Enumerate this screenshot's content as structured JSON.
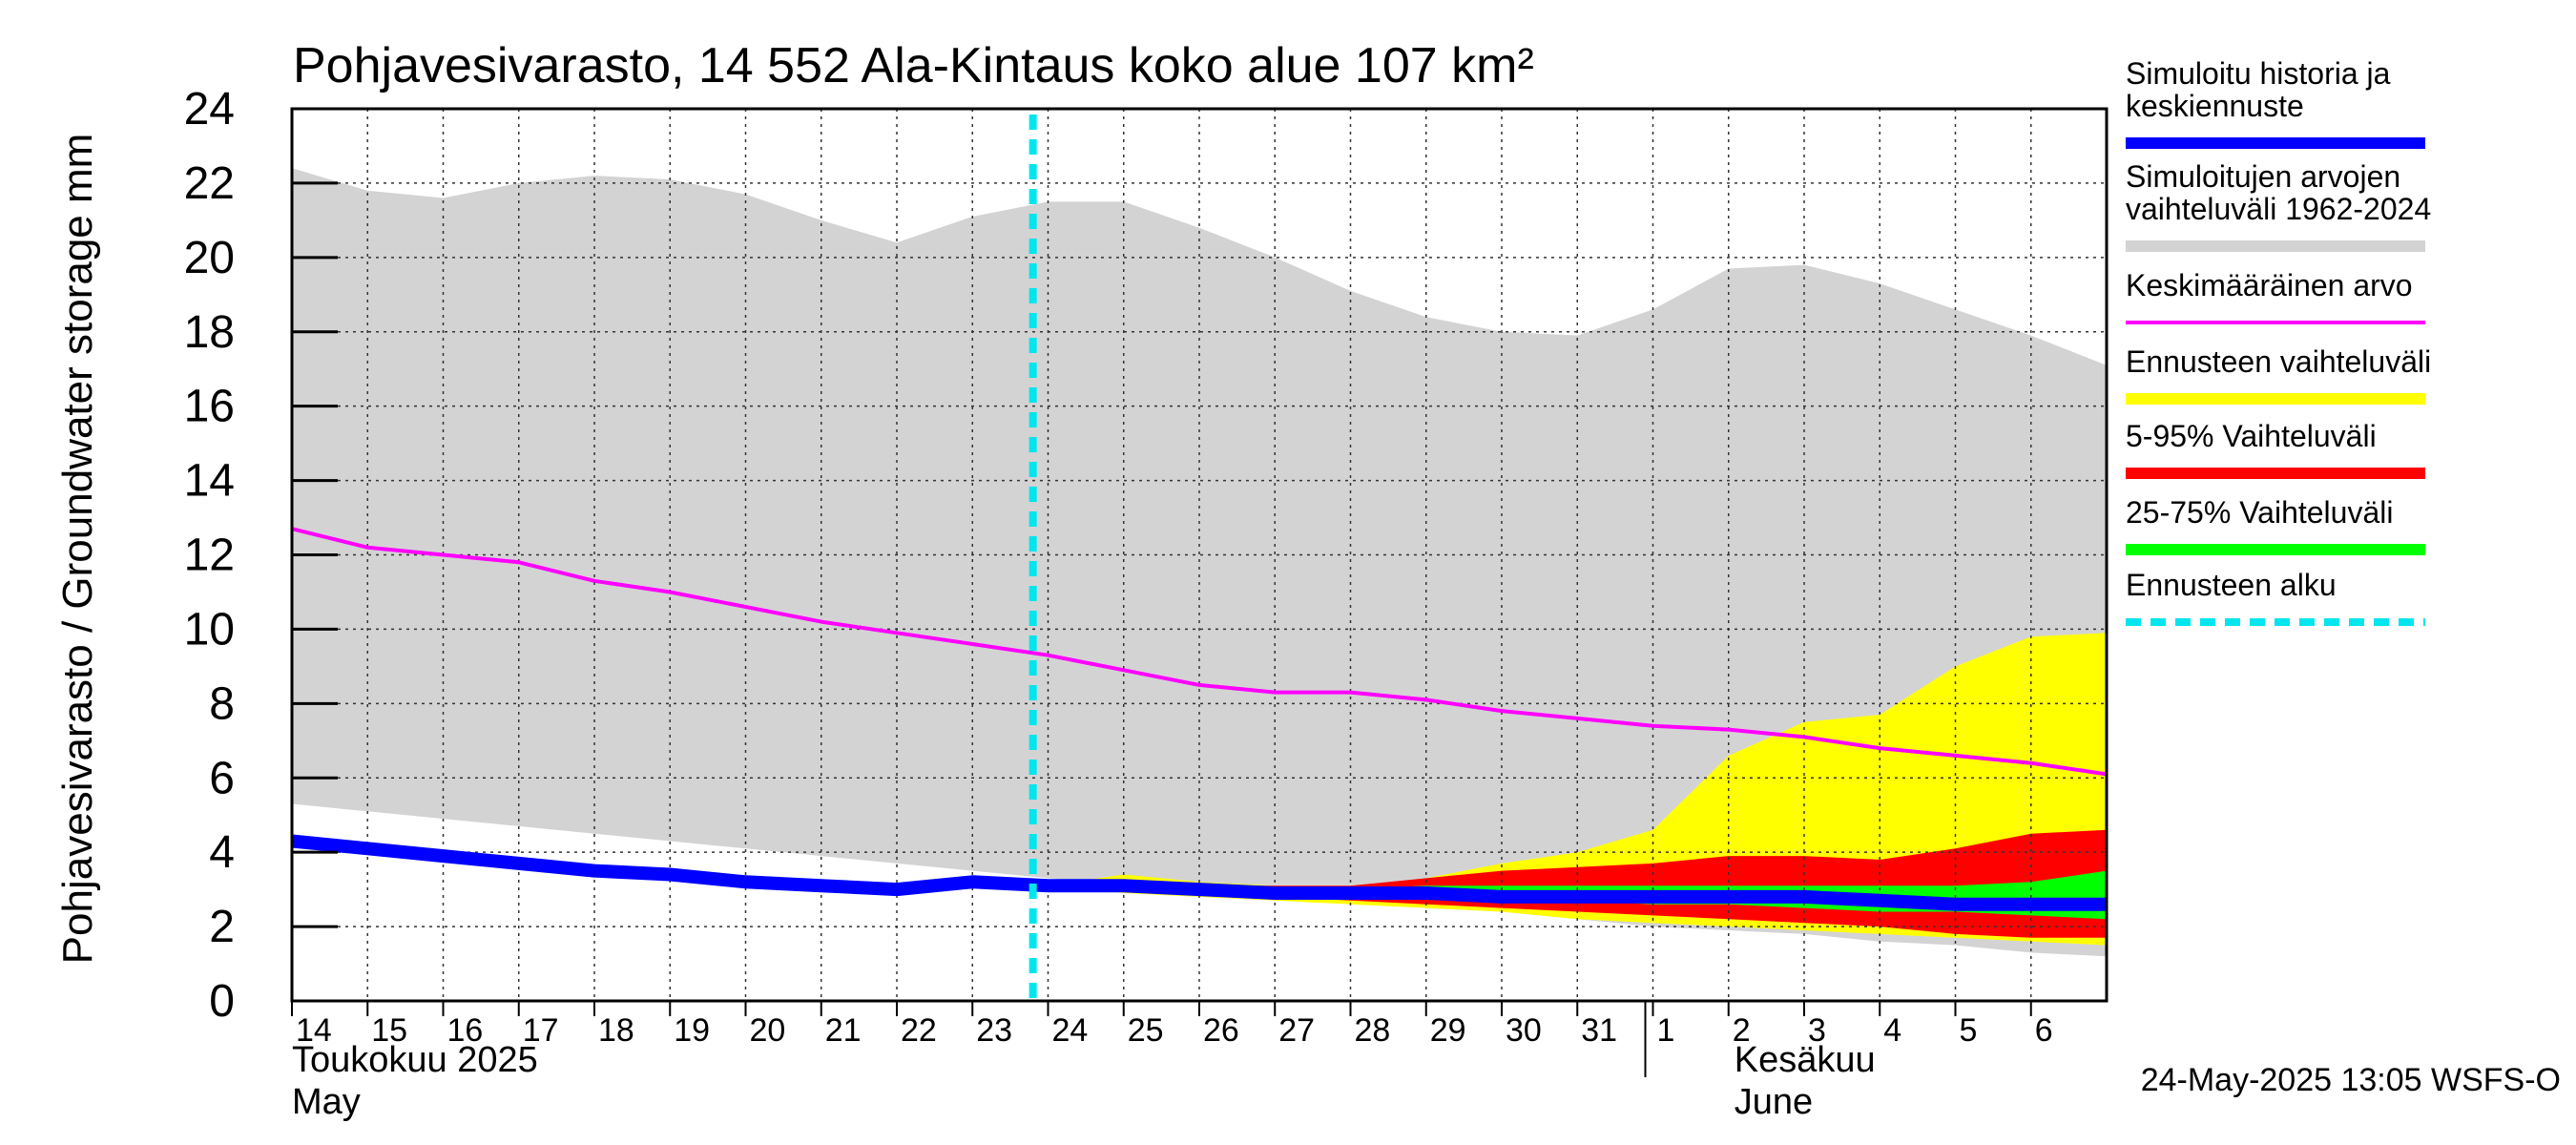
{
  "chart_data": {
    "type": "area",
    "title": "Pohjavesivarasto, 14 552 Ala-Kintaus koko alue 107 km²",
    "ylabel": "Pohjavesivarasto / Groundwater storage   mm",
    "xlabel": "",
    "ylim": [
      0,
      24
    ],
    "yticks": [
      0,
      2,
      4,
      6,
      8,
      10,
      12,
      14,
      16,
      18,
      20,
      22,
      24
    ],
    "grid": true,
    "x_ticks": [
      "14",
      "15",
      "16",
      "17",
      "18",
      "19",
      "20",
      "21",
      "22",
      "23",
      "24",
      "25",
      "26",
      "27",
      "28",
      "29",
      "30",
      "31",
      "1",
      "2",
      "3",
      "4",
      "5",
      "6"
    ],
    "month_labels": [
      {
        "line1": "Toukokuu  2025",
        "line2": "May",
        "at_day": 14
      },
      {
        "line1": "Kesäkuu",
        "line2": "June",
        "at_day": 33
      }
    ],
    "forecast_start_day": 24,
    "legend_position": "right",
    "legend": [
      {
        "label": "Simuloitu historia ja keskiennuste",
        "lines": [
          "Simuloitu historia ja",
          "keskiennuste"
        ],
        "color": "#0000ff",
        "style": "solid"
      },
      {
        "label": "Simuloitujen arvojen vaihteluväli 1962-2024",
        "lines": [
          "Simuloitujen arvojen",
          "vaihteluväli 1962-2024"
        ],
        "color": "#d3d3d3",
        "style": "solid"
      },
      {
        "label": "Keskimääräinen arvo",
        "lines": [
          "Keskimääräinen arvo"
        ],
        "color": "#ff00ff",
        "style": "thin"
      },
      {
        "label": "Ennusteen vaihteluväli",
        "lines": [
          "Ennusteen vaihteluväli"
        ],
        "color": "#ffff00",
        "style": "solid"
      },
      {
        "label": "5-95% Vaihteluväli",
        "lines": [
          "5-95% Vaihteluväli"
        ],
        "color": "#ff0000",
        "style": "solid"
      },
      {
        "label": "25-75% Vaihteluväli",
        "lines": [
          "25-75% Vaihteluväli"
        ],
        "color": "#00ff00",
        "style": "solid"
      },
      {
        "label": "Ennusteen alku",
        "lines": [
          "Ennusteen alku"
        ],
        "color": "#00e5ee",
        "style": "dashed"
      }
    ],
    "series": [
      {
        "name": "Simuloitujen arvojen vaihteluväli 1962-2024",
        "kind": "band",
        "color": "#d3d3d3",
        "x": [
          14,
          15,
          16,
          17,
          18,
          19,
          20,
          21,
          22,
          23,
          24,
          25,
          26,
          27,
          28,
          29,
          30,
          31,
          32,
          33,
          34,
          35,
          36,
          37,
          38
        ],
        "upper": [
          22.4,
          21.8,
          21.6,
          22.0,
          22.2,
          22.1,
          21.7,
          21.0,
          20.4,
          21.1,
          21.5,
          21.5,
          20.8,
          20.0,
          19.1,
          18.4,
          18.0,
          17.9,
          18.6,
          19.7,
          19.8,
          19.3,
          18.6,
          17.9,
          17.1
        ],
        "lower": [
          5.3,
          5.1,
          4.9,
          4.7,
          4.5,
          4.3,
          4.1,
          3.9,
          3.7,
          3.5,
          3.3,
          3.1,
          2.9,
          2.8,
          2.7,
          2.5,
          2.4,
          2.2,
          2.0,
          1.9,
          1.8,
          1.6,
          1.5,
          1.3,
          1.2
        ]
      },
      {
        "name": "Ennusteen vaihteluväli",
        "kind": "band",
        "color": "#ffff00",
        "x": [
          24,
          25,
          26,
          27,
          28,
          29,
          30,
          31,
          32,
          33,
          34,
          35,
          36,
          37,
          38
        ],
        "upper": [
          3.1,
          3.4,
          3.2,
          3.1,
          3.0,
          3.3,
          3.7,
          4.0,
          4.6,
          6.6,
          7.5,
          7.7,
          9.0,
          9.8,
          9.9
        ],
        "lower": [
          3.1,
          2.9,
          2.8,
          2.7,
          2.6,
          2.5,
          2.4,
          2.2,
          2.1,
          2.0,
          1.9,
          1.8,
          1.7,
          1.6,
          1.5
        ]
      },
      {
        "name": "5-95% Vaihteluväli",
        "kind": "band",
        "color": "#ff0000",
        "x": [
          24,
          25,
          26,
          27,
          28,
          29,
          30,
          31,
          32,
          33,
          34,
          35,
          36,
          37,
          38
        ],
        "upper": [
          3.1,
          3.2,
          3.1,
          3.1,
          3.1,
          3.3,
          3.5,
          3.6,
          3.7,
          3.9,
          3.9,
          3.8,
          4.1,
          4.5,
          4.6
        ],
        "lower": [
          3.1,
          3.0,
          2.9,
          2.8,
          2.7,
          2.6,
          2.5,
          2.4,
          2.3,
          2.2,
          2.1,
          2.0,
          1.8,
          1.7,
          1.7
        ]
      },
      {
        "name": "25-75% Vaihteluväli",
        "kind": "band",
        "color": "#00ff00",
        "x": [
          24,
          25,
          26,
          27,
          28,
          29,
          30,
          31,
          32,
          33,
          34,
          35,
          36,
          37,
          38
        ],
        "upper": [
          3.1,
          3.1,
          3.0,
          3.0,
          3.0,
          3.1,
          3.1,
          3.1,
          3.1,
          3.1,
          3.1,
          3.1,
          3.1,
          3.2,
          3.5
        ],
        "lower": [
          3.1,
          3.0,
          2.9,
          2.9,
          2.8,
          2.8,
          2.7,
          2.7,
          2.6,
          2.6,
          2.5,
          2.4,
          2.4,
          2.3,
          2.2
        ]
      },
      {
        "name": "Keskimääräinen arvo",
        "kind": "line",
        "color": "#ff00ff",
        "x": [
          14,
          15,
          16,
          17,
          18,
          19,
          20,
          21,
          22,
          23,
          24,
          25,
          26,
          27,
          28,
          29,
          30,
          31,
          32,
          33,
          34,
          35,
          36,
          37,
          38
        ],
        "values": [
          12.7,
          12.2,
          12.0,
          11.8,
          11.3,
          11.0,
          10.6,
          10.2,
          9.9,
          9.6,
          9.3,
          8.9,
          8.5,
          8.3,
          8.3,
          8.1,
          7.8,
          7.6,
          7.4,
          7.3,
          7.1,
          6.8,
          6.6,
          6.4,
          6.1
        ]
      },
      {
        "name": "Simuloitu historia ja keskiennuste",
        "kind": "line",
        "color": "#0000ff",
        "x": [
          14,
          15,
          16,
          17,
          18,
          19,
          20,
          21,
          22,
          23,
          24,
          25,
          26,
          27,
          28,
          29,
          30,
          31,
          32,
          33,
          34,
          35,
          36,
          37,
          38
        ],
        "values": [
          4.3,
          4.1,
          3.9,
          3.7,
          3.5,
          3.4,
          3.2,
          3.1,
          3.0,
          3.2,
          3.1,
          3.1,
          3.0,
          2.9,
          2.9,
          2.9,
          2.8,
          2.8,
          2.8,
          2.8,
          2.8,
          2.7,
          2.6,
          2.6,
          2.6
        ]
      }
    ]
  },
  "footer": {
    "timestamp": "24-May-2025 13:05 WSFS-O"
  }
}
